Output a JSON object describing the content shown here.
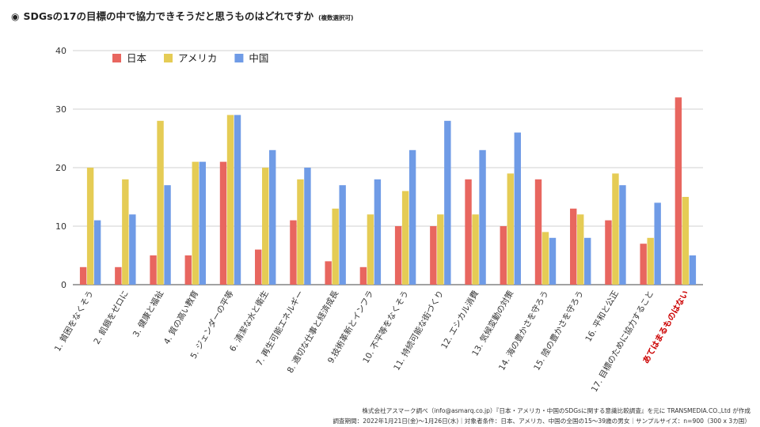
{
  "header": {
    "mark": "◉",
    "title": "SDGsの17の目標の中で協力できそうだと思うものはどれですか",
    "note": "(複数選択可)"
  },
  "footer": {
    "source": "株式会社アスマーク調べ（info@asmarq.co.jp）『日本・アメリカ・中国のSDGsに関する意識比較調査』を元に TRANSMEDIA.CO.,Ltd が作成",
    "conditions": "調査期間：2022年1月21日(金)〜1月26日(水)｜対象者条件：日本、アメリカ、中国の全国の15〜39歳の男女｜サンプルサイズ：n=900（300 x 3カ国）"
  },
  "chart_data": {
    "type": "bar",
    "ylim": [
      0,
      40
    ],
    "yticks": [
      0,
      10,
      20,
      30,
      40
    ],
    "grid": true,
    "legend_position": "top-left",
    "categories": [
      "1. 貧困をなくそう",
      "2. 飢餓をゼロに",
      "3. 健康と福祉",
      "4. 質の高い教育",
      "5. ジェンダーの平等",
      "6. 清潔な水と衛生",
      "7. 再生可能エネルギー",
      "8. 適切な仕事と経済成長",
      "9.技術革新とインフラ",
      "10. 不平等をなくそう",
      "11. 持続可能な街づくり",
      "12. エシカル消費",
      "13. 気候変動の対策",
      "14. 海の豊かさを守ろう",
      "15. 陸の豊かさを守ろう",
      "16. 平和と公正",
      "17. 目標のために協力すること",
      "あてはまるものはない"
    ],
    "highlight_category": "あてはまるものはない",
    "highlight_color": "#cc0000",
    "series": [
      {
        "name": "日本",
        "color": "#e8665f",
        "values": [
          3,
          3,
          5,
          5,
          21,
          6,
          11,
          4,
          3,
          10,
          10,
          18,
          10,
          18,
          13,
          11,
          7,
          32
        ]
      },
      {
        "name": "アメリカ",
        "color": "#e5cc55",
        "values": [
          20,
          18,
          28,
          21,
          29,
          20,
          18,
          13,
          12,
          16,
          12,
          12,
          19,
          9,
          12,
          19,
          8,
          15
        ]
      },
      {
        "name": "中国",
        "color": "#6f9be6",
        "values": [
          11,
          12,
          17,
          21,
          29,
          23,
          20,
          17,
          18,
          23,
          28,
          23,
          26,
          8,
          8,
          17,
          14,
          5
        ]
      }
    ]
  }
}
